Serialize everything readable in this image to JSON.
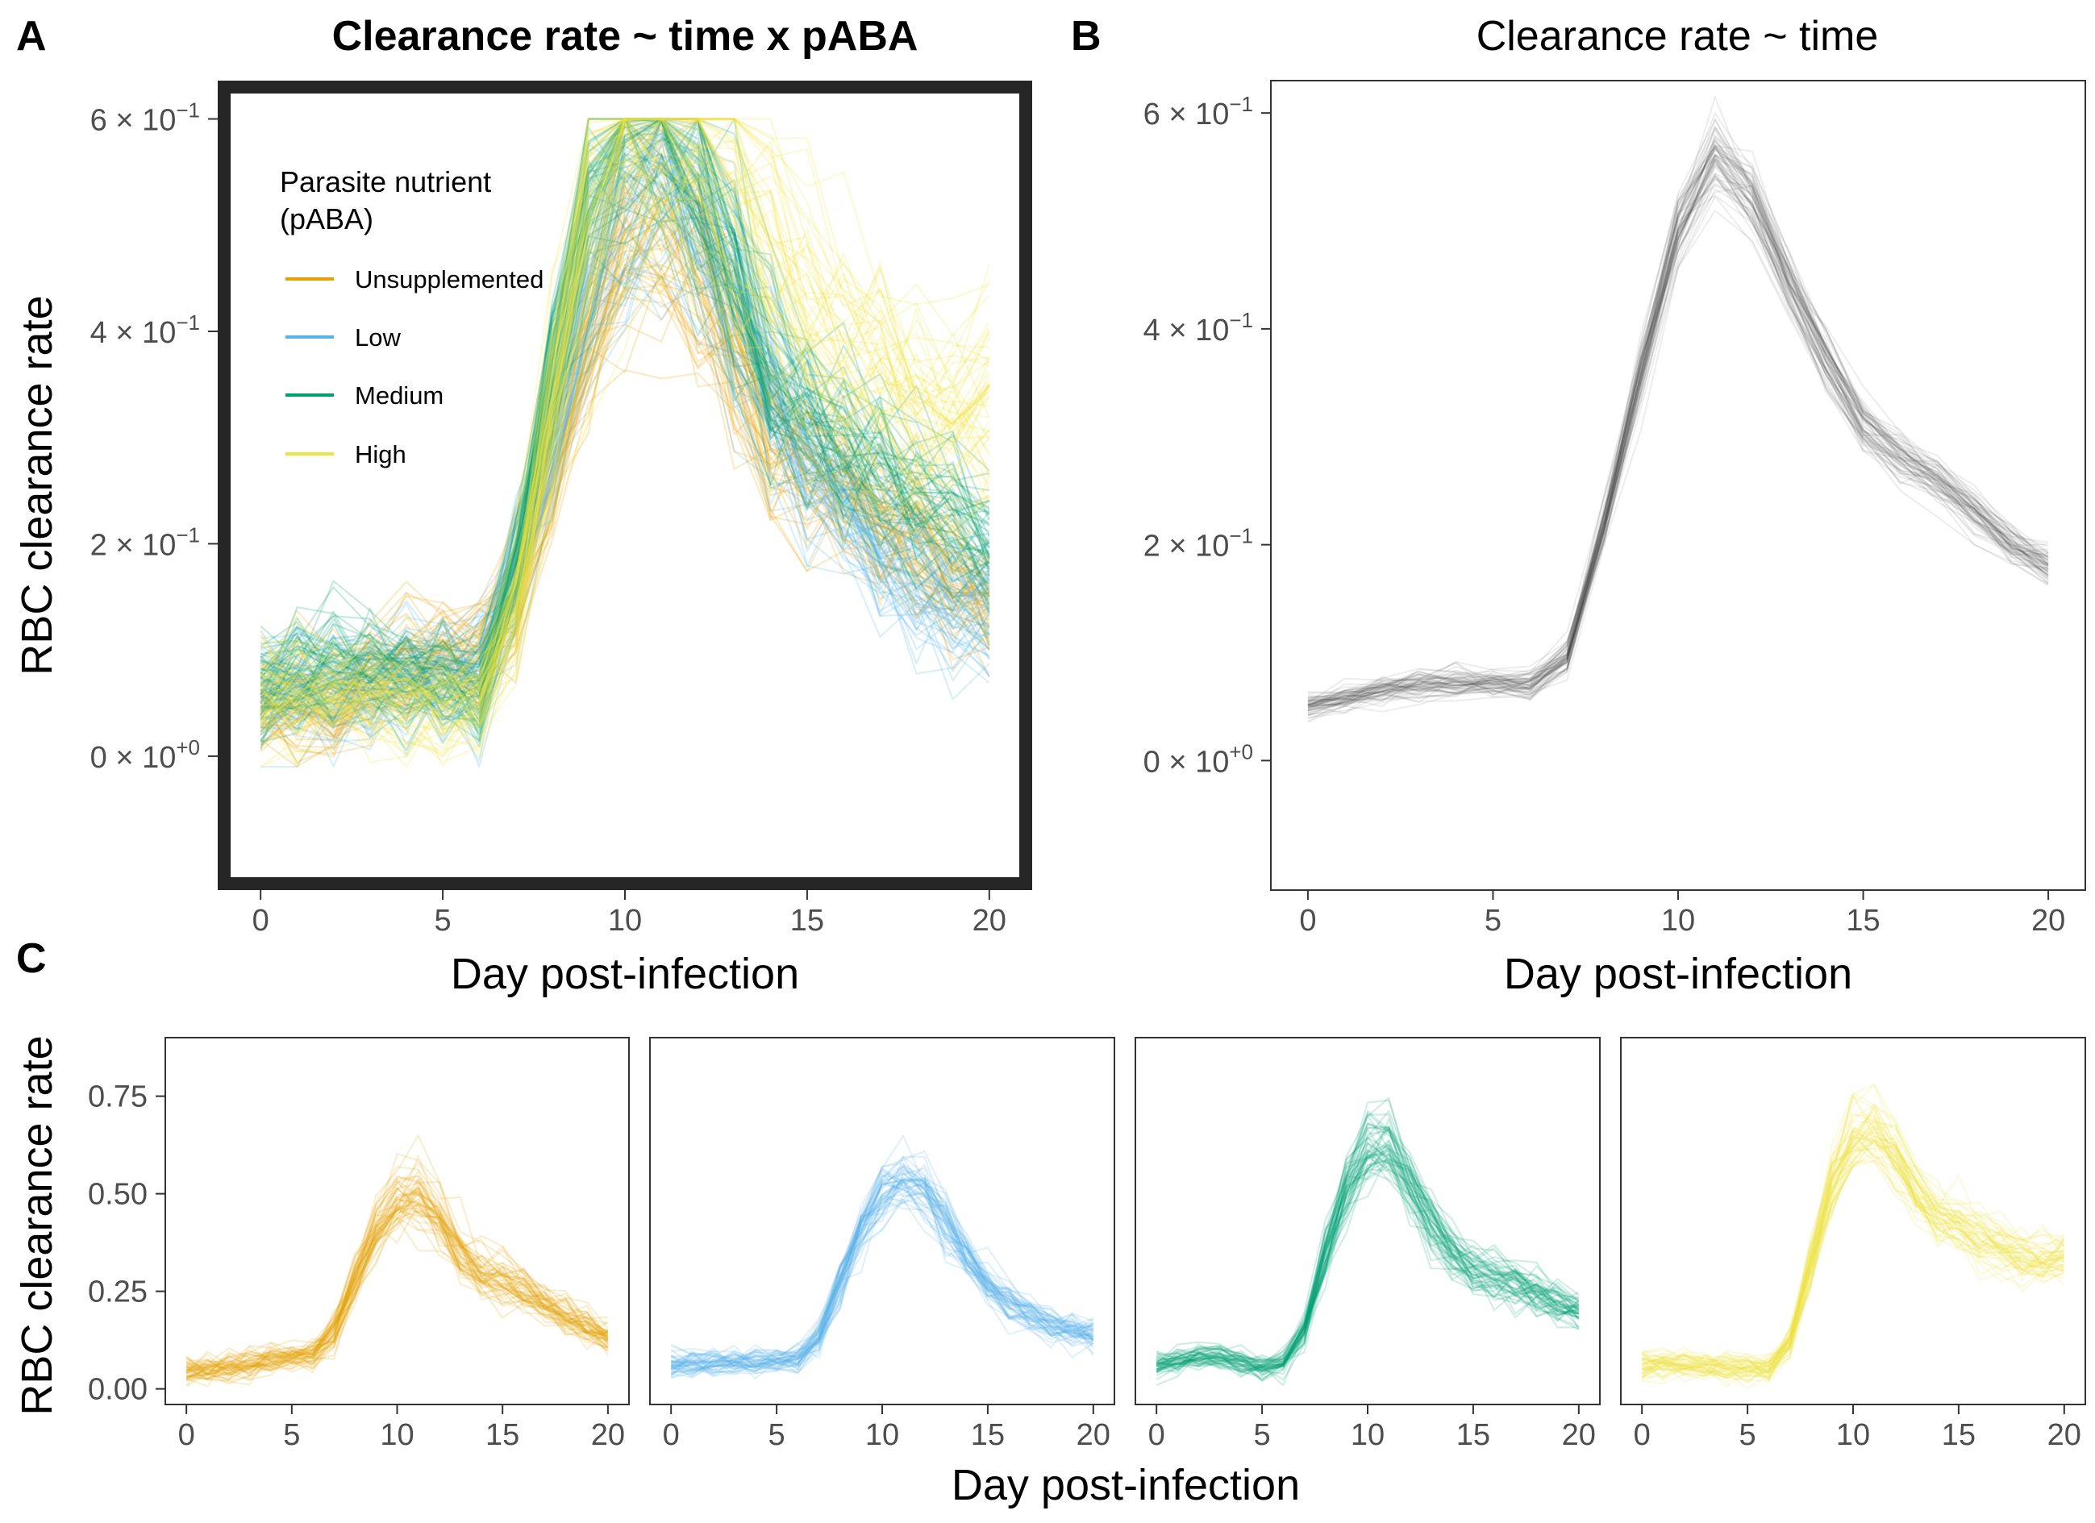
{
  "panel_letters": {
    "a": "A",
    "b": "B",
    "c": "C"
  },
  "legend": {
    "title_line1": "Parasite nutrient",
    "title_line2": "(pABA)",
    "items": [
      {
        "label": "Unsupplemented",
        "color": "#E69F00"
      },
      {
        "label": "Low",
        "color": "#56B4E9"
      },
      {
        "label": "Medium",
        "color": "#009E73"
      },
      {
        "label": "High",
        "color": "#F0E442"
      }
    ]
  },
  "chart_data": [
    {
      "panel": "A",
      "type": "line",
      "title": "Clearance rate ~ time x pABA",
      "xlabel": "Day post-infection",
      "ylabel": "RBC clearance rate",
      "xlim": [
        -1,
        21
      ],
      "ylim": [
        -0.12,
        0.63
      ],
      "xticks": [
        "0",
        "5",
        "10",
        "15",
        "20"
      ],
      "yticks": [
        {
          "value": 0.6,
          "mantissa": "6",
          "exponent": "−1"
        },
        {
          "value": 0.4,
          "mantissa": "4",
          "exponent": "−1"
        },
        {
          "value": 0.2,
          "mantissa": "2",
          "exponent": "−1"
        },
        {
          "value": 0.0,
          "mantissa": "0",
          "exponent": "+0"
        }
      ],
      "grid": false,
      "legend_position": "top-left",
      "series": [
        {
          "name": "Unsupplemented",
          "color": "#E69F00",
          "x": [
            0,
            1,
            2,
            3,
            4,
            5,
            6,
            7,
            8,
            9,
            10,
            11,
            12,
            13,
            14,
            15,
            16,
            17,
            18,
            19,
            20
          ],
          "y": [
            0.045,
            0.045,
            0.05,
            0.07,
            0.085,
            0.095,
            0.09,
            0.16,
            0.28,
            0.4,
            0.48,
            0.5,
            0.46,
            0.38,
            0.3,
            0.27,
            0.25,
            0.23,
            0.2,
            0.17,
            0.14
          ]
        },
        {
          "name": "Low",
          "color": "#56B4E9",
          "x": [
            0,
            1,
            2,
            3,
            4,
            5,
            6,
            7,
            8,
            9,
            10,
            11,
            12,
            13,
            14,
            15,
            16,
            17,
            18,
            19,
            20
          ],
          "y": [
            0.055,
            0.06,
            0.065,
            0.07,
            0.07,
            0.07,
            0.07,
            0.16,
            0.3,
            0.44,
            0.52,
            0.55,
            0.52,
            0.43,
            0.34,
            0.27,
            0.23,
            0.19,
            0.16,
            0.14,
            0.13
          ]
        },
        {
          "name": "Medium",
          "color": "#009E73",
          "x": [
            0,
            1,
            2,
            3,
            4,
            5,
            6,
            7,
            8,
            9,
            10,
            11,
            12,
            13,
            14,
            15,
            16,
            17,
            18,
            19,
            20
          ],
          "y": [
            0.06,
            0.075,
            0.085,
            0.08,
            0.07,
            0.065,
            0.06,
            0.17,
            0.36,
            0.52,
            0.6,
            0.6,
            0.54,
            0.44,
            0.35,
            0.32,
            0.29,
            0.27,
            0.25,
            0.23,
            0.2
          ]
        },
        {
          "name": "High",
          "color": "#F0E442",
          "x": [
            0,
            1,
            2,
            3,
            4,
            5,
            6,
            7,
            8,
            9,
            10,
            11,
            12,
            13,
            14,
            15,
            16,
            17,
            18,
            19,
            20
          ],
          "y": [
            0.055,
            0.06,
            0.06,
            0.055,
            0.05,
            0.05,
            0.05,
            0.14,
            0.33,
            0.52,
            0.6,
            0.6,
            0.58,
            0.54,
            0.47,
            0.42,
            0.38,
            0.36,
            0.33,
            0.31,
            0.33
          ]
        }
      ]
    },
    {
      "panel": "B",
      "type": "line",
      "title": "Clearance rate ~ time",
      "xlabel": "Day post-infection",
      "ylabel": "",
      "xlim": [
        -1,
        21
      ],
      "ylim": [
        -0.12,
        0.63
      ],
      "xticks": [
        "0",
        "5",
        "10",
        "15",
        "20"
      ],
      "yticks": [
        {
          "value": 0.6,
          "mantissa": "6",
          "exponent": "−1"
        },
        {
          "value": 0.4,
          "mantissa": "4",
          "exponent": "−1"
        },
        {
          "value": 0.2,
          "mantissa": "2",
          "exponent": "−1"
        },
        {
          "value": 0.0,
          "mantissa": "0",
          "exponent": "+0"
        }
      ],
      "grid": false,
      "series": [
        {
          "name": "",
          "color": "#333333",
          "x": [
            0,
            1,
            2,
            3,
            4,
            5,
            6,
            7,
            8,
            9,
            10,
            11,
            12,
            13,
            14,
            15,
            16,
            17,
            18,
            19,
            20
          ],
          "y": [
            0.05,
            0.058,
            0.065,
            0.07,
            0.072,
            0.072,
            0.07,
            0.095,
            0.22,
            0.36,
            0.49,
            0.56,
            0.52,
            0.44,
            0.37,
            0.31,
            0.28,
            0.26,
            0.23,
            0.2,
            0.18
          ]
        }
      ]
    },
    {
      "panel": "C",
      "type": "line",
      "title": "",
      "xlabel": "Day post-infection",
      "ylabel": "RBC clearance rate",
      "xlim": [
        -1,
        21
      ],
      "ylim": [
        -0.04,
        0.9
      ],
      "xticks": [
        "0",
        "5",
        "10",
        "15",
        "20"
      ],
      "yticks": [
        "0.00",
        "0.25",
        "0.50",
        "0.75"
      ],
      "facets": [
        {
          "name": "Unsupplemented",
          "color": "#E69F00",
          "x": [
            0,
            1,
            2,
            3,
            4,
            5,
            6,
            7,
            8,
            9,
            10,
            11,
            12,
            13,
            14,
            15,
            16,
            17,
            18,
            19,
            20
          ],
          "y": [
            0.045,
            0.048,
            0.055,
            0.065,
            0.075,
            0.08,
            0.09,
            0.15,
            0.28,
            0.41,
            0.49,
            0.5,
            0.44,
            0.35,
            0.3,
            0.28,
            0.26,
            0.22,
            0.19,
            0.16,
            0.13
          ]
        },
        {
          "name": "Low",
          "color": "#56B4E9",
          "x": [
            0,
            1,
            2,
            3,
            4,
            5,
            6,
            7,
            8,
            9,
            10,
            11,
            12,
            13,
            14,
            15,
            16,
            17,
            18,
            19,
            20
          ],
          "y": [
            0.06,
            0.062,
            0.066,
            0.068,
            0.07,
            0.07,
            0.075,
            0.13,
            0.27,
            0.41,
            0.5,
            0.53,
            0.51,
            0.43,
            0.34,
            0.27,
            0.22,
            0.19,
            0.16,
            0.15,
            0.14
          ]
        },
        {
          "name": "Medium",
          "color": "#009E73",
          "x": [
            0,
            1,
            2,
            3,
            4,
            5,
            6,
            7,
            8,
            9,
            10,
            11,
            12,
            13,
            14,
            15,
            16,
            17,
            18,
            19,
            20
          ],
          "y": [
            0.06,
            0.075,
            0.085,
            0.082,
            0.07,
            0.06,
            0.065,
            0.15,
            0.35,
            0.53,
            0.62,
            0.62,
            0.54,
            0.43,
            0.35,
            0.31,
            0.29,
            0.27,
            0.25,
            0.22,
            0.2
          ]
        },
        {
          "name": "High",
          "color": "#F0E442",
          "x": [
            0,
            1,
            2,
            3,
            4,
            5,
            6,
            7,
            8,
            9,
            10,
            11,
            12,
            13,
            14,
            15,
            16,
            17,
            18,
            19,
            20
          ],
          "y": [
            0.06,
            0.065,
            0.065,
            0.06,
            0.055,
            0.055,
            0.055,
            0.12,
            0.32,
            0.52,
            0.64,
            0.66,
            0.6,
            0.5,
            0.44,
            0.42,
            0.38,
            0.36,
            0.34,
            0.33,
            0.34
          ]
        }
      ]
    }
  ]
}
